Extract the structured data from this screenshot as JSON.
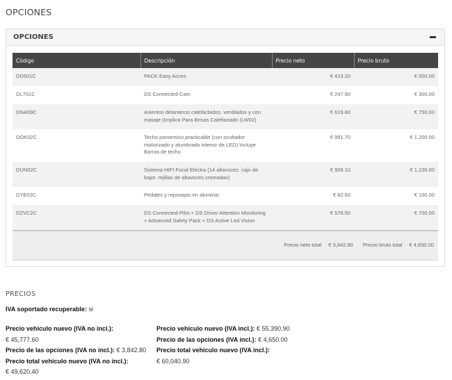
{
  "page_title": "OPCIONES",
  "panel": {
    "title": "OPCIONES",
    "collapse_icon": "minus-icon"
  },
  "table": {
    "headers": [
      "Código",
      "Descripción",
      "Precio neto",
      "Precio bruto"
    ],
    "rows": [
      {
        "code": "DD501C",
        "desc": "PACK Easy Acces",
        "neto": "€ 413.20",
        "bruto": "€ 500.00"
      },
      {
        "code": "DL701C",
        "desc": "DS Connected Cam",
        "neto": "€ 247.90",
        "bruto": "€ 300.00"
      },
      {
        "code": "DNA09C",
        "desc": "Asientos delanteros calefactados. ventilados y con masaje (Implica Para Brisas Calefactado (LW02)",
        "neto": "€ 619.80",
        "bruto": "€ 750.00"
      },
      {
        "code": "DOK02C",
        "desc": "Techo panormico practicable (con ocultador motorizado y alumbrado interior de LED) Incluye Barras de techo",
        "neto": "€ 991.70",
        "bruto": "€ 1,200.00"
      },
      {
        "code": "DUN02C",
        "desc": "Sistema HIFI Focal Electra (14 altavoces. cajn de bajor. rejillas de altavoces cromadas)",
        "neto": "€ 909.10",
        "bruto": "€ 1,100.00"
      },
      {
        "code": "DYE02C",
        "desc": "Pedales y reposapis en aluminio",
        "neto": "€ 82.60",
        "bruto": "€ 100.00"
      },
      {
        "code": "DZVC2C",
        "desc": "DS Connected Pilot + DS Driver Attention Monitoring + Advanced Safety Pack + DS Active Led Vision",
        "neto": "€ 578.50",
        "bruto": "€ 700.00"
      }
    ],
    "footer": {
      "neto_label": "Precio neto total",
      "neto": "€ 3,842.80",
      "bruto_label": "Precio bruto total",
      "bruto": "€ 4,650.00"
    }
  },
  "precios": {
    "title": "PRECIOS",
    "iva_label": "IVA soportado recuperable:",
    "iva_value": "si",
    "left": [
      {
        "label": "Precio vehiculo nuevo (IVA no incl.):",
        "value": "€ 45,777.60"
      },
      {
        "label": "Precio de las opciones (IVA no incl.):",
        "value": "€ 3,842.80"
      },
      {
        "label": "Precio total vehiculo nuevo (IVA no incl.):",
        "value": "€ 49,620.40"
      }
    ],
    "right": [
      {
        "label": "Precio vehiculo nuevo (IVA incl.):",
        "value": "€ 55,390.90"
      },
      {
        "label": "Precio de las opciones (IVA incl.):",
        "value": "€ 4,650.00"
      },
      {
        "label": "Precio total vehiculo nuevo (IVA incl.):",
        "value": "€ 60,040.90"
      }
    ]
  }
}
